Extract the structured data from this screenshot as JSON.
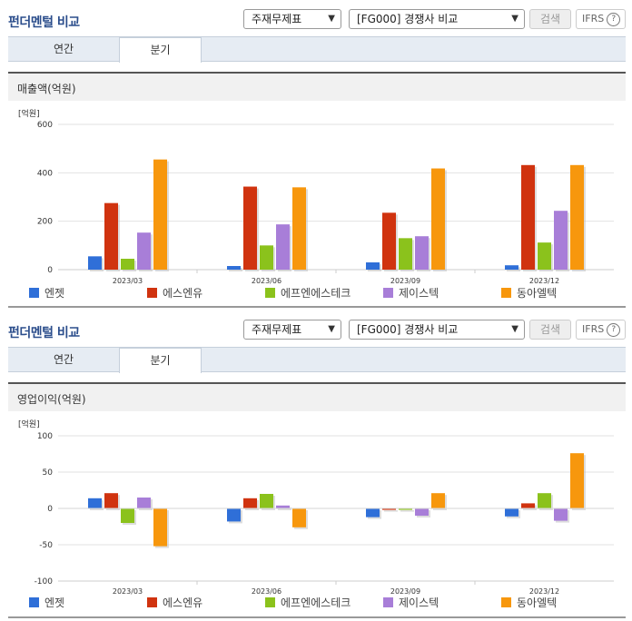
{
  "common": {
    "title": "펀더멘털 비교",
    "select1": "주재무제표",
    "select2": "[FG000] 경쟁사 비교",
    "search_button": "검색",
    "ifrs": "IFRS",
    "help": "?",
    "tab_annual": "연간",
    "tab_quarter": "분기",
    "active_tab": "분기"
  },
  "colors": {
    "엔젯": "#2f6fd8",
    "에스엔유": "#d0330f",
    "에프엔에스테크": "#8bc21c",
    "제이스텍": "#a87ed8",
    "동아엘텍": "#f7970d"
  },
  "chart_data": [
    {
      "type": "bar",
      "subtitle": "매출액(억원)",
      "unit_label": "[억원]",
      "categories": [
        "2023/03",
        "2023/06",
        "2023/09",
        "2023/12"
      ],
      "ylim": [
        0,
        600
      ],
      "yticks": [
        0,
        200,
        400,
        600
      ],
      "series": [
        {
          "name": "엔젯",
          "values": [
            55,
            15,
            30,
            18
          ]
        },
        {
          "name": "에스엔유",
          "values": [
            275,
            343,
            235,
            432
          ]
        },
        {
          "name": "에프엔에스테크",
          "values": [
            45,
            100,
            130,
            112
          ]
        },
        {
          "name": "제이스텍",
          "values": [
            153,
            187,
            138,
            243
          ]
        },
        {
          "name": "동아엘텍",
          "values": [
            455,
            340,
            418,
            432
          ]
        }
      ]
    },
    {
      "type": "bar",
      "subtitle": "영업이익(억원)",
      "unit_label": "[억원]",
      "categories": [
        "2023/03",
        "2023/06",
        "2023/09",
        "2023/12"
      ],
      "ylim": [
        -100,
        100
      ],
      "yticks": [
        -100,
        -50,
        0,
        50,
        100
      ],
      "series": [
        {
          "name": "엔젯",
          "values": [
            14,
            -18,
            -12,
            -11
          ]
        },
        {
          "name": "에스엔유",
          "values": [
            21,
            14,
            -2,
            7
          ]
        },
        {
          "name": "에프엔에스테크",
          "values": [
            -20,
            20,
            -2,
            21
          ]
        },
        {
          "name": "제이스텍",
          "values": [
            15,
            4,
            -10,
            -17
          ]
        },
        {
          "name": "동아엘텍",
          "values": [
            -52,
            -26,
            21,
            76
          ]
        }
      ]
    }
  ]
}
